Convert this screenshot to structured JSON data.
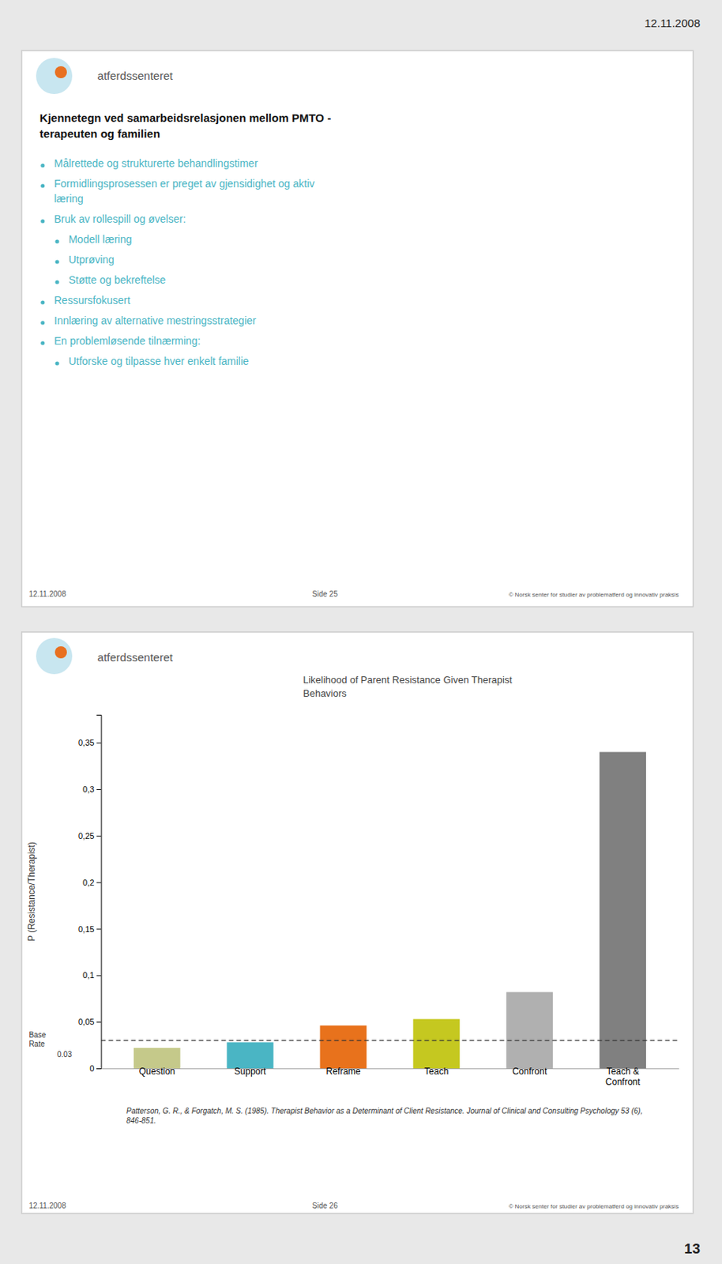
{
  "page_date": "12.11.2008",
  "page_number": "13",
  "slide1": {
    "logo_text": "atferdssenteret",
    "title": "Kjennetegn ved samarbeidsrelasjonen mellom PMTO -\nterapeuten og familien",
    "bullets": [
      {
        "level": 1,
        "text": "Målrettede og strukturerte behandlingstimer"
      },
      {
        "level": 1,
        "text": "Formidlingsprosessen er preget av gjensidighet og aktiv"
      },
      {
        "level": 0,
        "text": "læring"
      },
      {
        "level": 1,
        "text": "Bruk av rollespill og øvelser:"
      },
      {
        "level": 2,
        "text": "Modell læring"
      },
      {
        "level": 2,
        "text": "Utprøving"
      },
      {
        "level": 2,
        "text": "Støtte og bekreftelse"
      },
      {
        "level": 1,
        "text": "Ressursfokusert"
      },
      {
        "level": 1,
        "text": "Innlæring av alternative mestringsstrategier"
      },
      {
        "level": 1,
        "text": "En problemløsende tilnærming:"
      },
      {
        "level": 2,
        "text": "Utforske og tilpasse hver enkelt familie"
      }
    ],
    "footer_left": "12.11.2008",
    "footer_center": "Side 25",
    "footer_right": "© Norsk senter for studier av problematferd og innovativ praksis"
  },
  "chart_data": {
    "type": "bar",
    "logo_text": "atferdssenteret",
    "title": "Likelihood of Parent Resistance Given Therapist\nBehaviors",
    "ylabel": "P (Resistance/Therapist)",
    "categories": [
      "Question",
      "Support",
      "Reframe",
      "Teach",
      "Confront",
      "Teach &\nConfront"
    ],
    "values": [
      0.022,
      0.028,
      0.046,
      0.053,
      0.082,
      0.34
    ],
    "colors": [
      "#c5c98a",
      "#4ab5c4",
      "#e8721c",
      "#c5c820",
      "#b0b0b0",
      "#808080"
    ],
    "ylim": [
      0,
      0.38
    ],
    "yticks": [
      0,
      {
        "value": 0.05,
        "label": "0,05"
      },
      {
        "value": 0.1,
        "label": "0,1"
      },
      {
        "value": 0.15,
        "label": "0,15"
      },
      {
        "value": 0.2,
        "label": "0,2"
      },
      {
        "value": 0.25,
        "label": "0,25"
      },
      {
        "value": 0.3,
        "label": "0,3"
      },
      {
        "value": 0.35,
        "label": "0,35"
      }
    ],
    "grid": false,
    "reference_line": {
      "value": 0.03,
      "label": "Base\nRate"
    },
    "citation": "Patterson, G. R., & Forgatch, M. S. (1985). Therapist Behavior as a Determinant of Client Resistance. Journal of Clinical and Consulting Psychology 53 (6),  846-851.",
    "footer_left": "12.11.2008",
    "footer_center": "Side 26",
    "footer_right": "© Norsk senter for studier av problematferd og innovativ praksis"
  }
}
